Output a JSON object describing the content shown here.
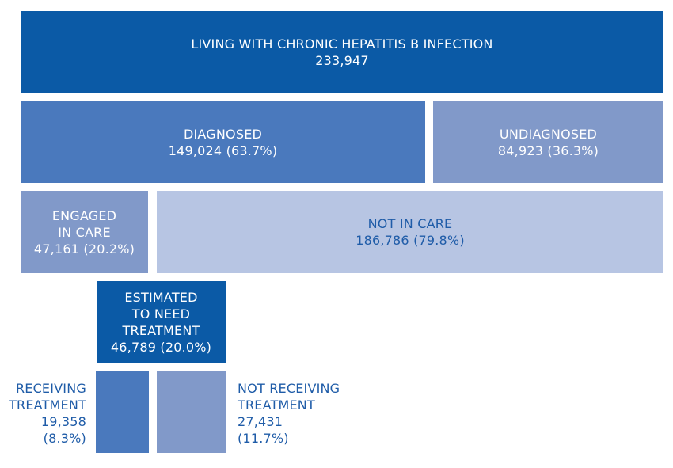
{
  "total": {
    "title": "LIVING WITH CHRONIC HEPATITIS B INFECTION",
    "value": "233,947"
  },
  "diagnosed": {
    "title": "DIAGNOSED",
    "value": "149,024 (63.7%)"
  },
  "undiagnosed": {
    "title": "UNDIAGNOSED",
    "value": "84,923 (36.3%)"
  },
  "engaged_in_care": {
    "title_line1": "ENGAGED",
    "title_line2": "IN CARE",
    "value": "47,161 (20.2%)"
  },
  "not_in_care": {
    "title": "NOT IN CARE",
    "value": "186,786 (79.8%)"
  },
  "estimated_need_treatment": {
    "title_line1": "ESTIMATED",
    "title_line2": "TO NEED",
    "title_line3": "TREATMENT",
    "value": "46,789 (20.0%)"
  },
  "receiving_treatment": {
    "title_line1": "RECEIVING",
    "title_line2": "TREATMENT",
    "count": "19,358",
    "percent": "(8.3%)"
  },
  "not_receiving_treatment": {
    "title_line1": "NOT RECEIVING",
    "title_line2": "TREATMENT",
    "count": "27,431",
    "percent": "(11.7%)"
  },
  "colors": {
    "dark_blue": "#0b5aa6",
    "medium_blue": "#4a79bd",
    "light_blue": "#8199c9",
    "pale_blue": "#b7c5e3",
    "text_blue": "#1f5ca8"
  }
}
